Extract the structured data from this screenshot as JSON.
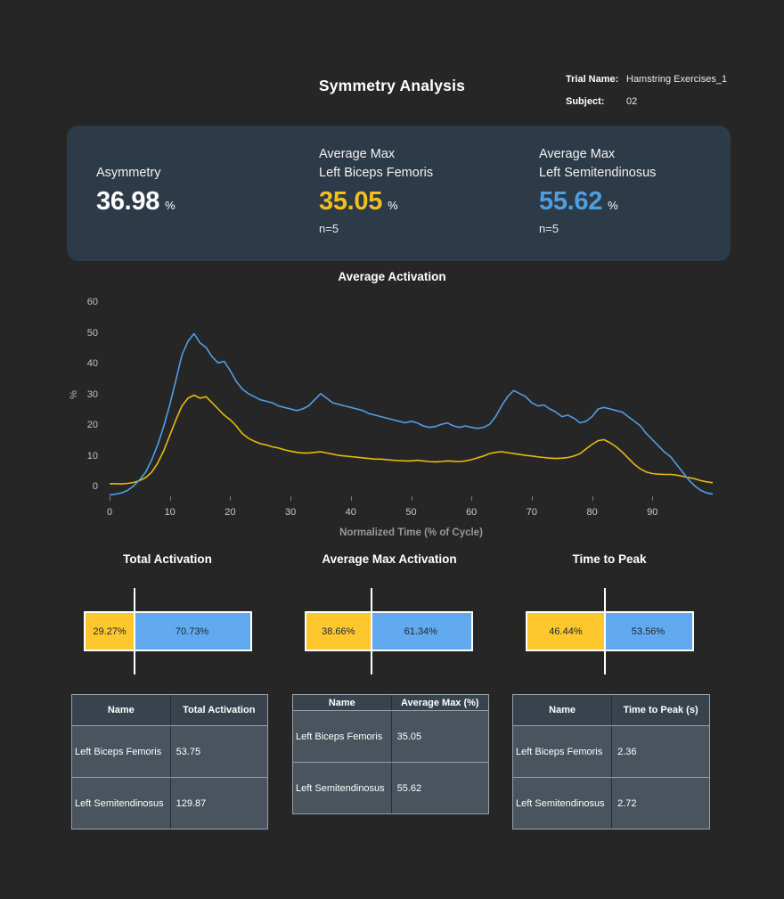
{
  "header": {
    "title": "Symmetry Analysis",
    "trial_name_label": "Trial Name:",
    "trial_name_value": "Hamstring Exercises_1",
    "subject_label": "Subject:",
    "subject_value": "02"
  },
  "summary_card": {
    "asymmetry": {
      "label": "Asymmetry",
      "value": "36.98",
      "unit": "%"
    },
    "biceps": {
      "label_line1": "Average Max",
      "label_line2": "Left Biceps Femoris",
      "value": "35.05",
      "unit": "%",
      "n": "n=5",
      "color": "#f2c01d"
    },
    "semitendinosus": {
      "label_line1": "Average Max",
      "label_line2": "Left Semitendinosus",
      "value": "55.62",
      "unit": "%",
      "n": "n=5",
      "color": "#4f9fe0"
    }
  },
  "colors": {
    "background": "#262626",
    "card": "#2d3a47",
    "line_yellow": "#e6bb0f",
    "line_blue": "#4f9ee6",
    "bar_yellow": "#ffc72e",
    "bar_blue": "#61aaef",
    "axis_text": "#c3c3c3"
  },
  "chart_data": [
    {
      "type": "line",
      "title": "Average Activation",
      "xlabel": "Normalized Time (% of Cycle)",
      "ylabel": "%",
      "xlim": [
        0,
        100
      ],
      "ylim": [
        0,
        60
      ],
      "x_ticks": [
        0,
        10,
        20,
        30,
        40,
        50,
        60,
        70,
        80,
        90
      ],
      "y_ticks": [
        0,
        10,
        20,
        30,
        40,
        50,
        60
      ],
      "grid": false,
      "legend": "none",
      "x": [
        0,
        1,
        2,
        3,
        4,
        5,
        6,
        7,
        8,
        9,
        10,
        11,
        12,
        13,
        14,
        15,
        16,
        17,
        18,
        19,
        20,
        21,
        22,
        23,
        24,
        25,
        26,
        27,
        28,
        29,
        30,
        31,
        32,
        33,
        34,
        35,
        36,
        37,
        38,
        39,
        40,
        41,
        42,
        43,
        44,
        45,
        46,
        47,
        48,
        49,
        50,
        51,
        52,
        53,
        54,
        55,
        56,
        57,
        58,
        59,
        60,
        61,
        62,
        63,
        64,
        65,
        66,
        67,
        68,
        69,
        70,
        71,
        72,
        73,
        74,
        75,
        76,
        77,
        78,
        79,
        80,
        81,
        82,
        83,
        84,
        85,
        86,
        87,
        88,
        89,
        90,
        91,
        92,
        93,
        94,
        95,
        96,
        97,
        98,
        99,
        100
      ],
      "series": [
        {
          "name": "Left Biceps Femoris",
          "color": "#e6bb0f",
          "values": [
            1.2,
            1.2,
            1.1,
            1.3,
            1.6,
            2.2,
            3.2,
            5,
            8,
            12,
            17,
            22,
            26.5,
            29,
            30,
            29,
            29.5,
            27.5,
            25.5,
            23.5,
            22,
            20,
            17.5,
            16,
            15,
            14.2,
            13.8,
            13.2,
            12.8,
            12.2,
            11.8,
            11.4,
            11.2,
            11.2,
            11.4,
            11.6,
            11.2,
            10.8,
            10.4,
            10.2,
            10,
            9.8,
            9.6,
            9.4,
            9.2,
            9.2,
            9,
            8.8,
            8.7,
            8.6,
            8.6,
            8.8,
            8.6,
            8.4,
            8.3,
            8.4,
            8.6,
            8.5,
            8.4,
            8.6,
            9,
            9.6,
            10.2,
            11,
            11.4,
            11.6,
            11.3,
            11,
            10.7,
            10.4,
            10.2,
            9.9,
            9.7,
            9.5,
            9.4,
            9.5,
            9.7,
            10.2,
            11,
            12.5,
            14,
            15.2,
            15.5,
            14.5,
            13.2,
            11.5,
            9.5,
            7.5,
            6,
            5,
            4.5,
            4.3,
            4.2,
            4.2,
            4,
            3.6,
            3.2,
            2.8,
            2.2,
            1.8,
            1.5
          ]
        },
        {
          "name": "Left Semitendinosus",
          "color": "#4f9ee6",
          "values": [
            -2.5,
            -2.2,
            -1.8,
            -1,
            0.5,
            2.5,
            5,
            9,
            14,
            20,
            27,
            35,
            43,
            47.5,
            50,
            47,
            45.5,
            42.5,
            40.5,
            41,
            38,
            34.5,
            32,
            30.5,
            29.5,
            28.5,
            28,
            27.5,
            26.5,
            26,
            25.5,
            25,
            25.5,
            26.5,
            28.5,
            30.5,
            29,
            27.5,
            27,
            26.5,
            26,
            25.5,
            25,
            24,
            23.5,
            23,
            22.5,
            22,
            21.5,
            21,
            21.5,
            21,
            20,
            19.5,
            19.8,
            20.5,
            21,
            20,
            19.5,
            20,
            19.5,
            19.2,
            19.5,
            20.5,
            23,
            26.5,
            29.5,
            31.5,
            30.5,
            29.5,
            27.5,
            26.5,
            26.8,
            25.5,
            24.5,
            23,
            23.5,
            22.5,
            21,
            21.5,
            23,
            25.5,
            26,
            25.5,
            25,
            24.5,
            23,
            21.5,
            20,
            17.5,
            15.5,
            13.5,
            11.5,
            10,
            7.5,
            5,
            2.5,
            0.5,
            -1,
            -1.8,
            -2.2
          ]
        }
      ]
    },
    {
      "type": "bar",
      "subtype": "symmetry-split",
      "title": "Total Activation",
      "series": [
        {
          "name": "Left Biceps Femoris",
          "value": 29.27
        },
        {
          "name": "Left Semitendinosus",
          "value": 70.73
        }
      ],
      "left_label": "29.27%",
      "right_label": "70.73%"
    },
    {
      "type": "bar",
      "subtype": "symmetry-split",
      "title": "Average Max Activation",
      "series": [
        {
          "name": "Left Biceps Femoris",
          "value": 38.66
        },
        {
          "name": "Left Semitendinosus",
          "value": 61.34
        }
      ],
      "left_label": "38.66%",
      "right_label": "61.34%"
    },
    {
      "type": "bar",
      "subtype": "symmetry-split",
      "title": "Time to Peak",
      "series": [
        {
          "name": "Left Biceps Femoris",
          "value": 46.44
        },
        {
          "name": "Left Semitendinosus",
          "value": 53.56
        }
      ],
      "left_label": "46.44%",
      "right_label": "53.56%"
    }
  ],
  "tables": [
    {
      "columns": [
        "Name",
        "Total Activation"
      ],
      "rows": [
        {
          "name": "Left Biceps Femoris",
          "value": "53.75"
        },
        {
          "name": "Left Semitendinosus",
          "value": "129.87"
        }
      ]
    },
    {
      "columns": [
        "Name",
        "Average Max (%)"
      ],
      "rows": [
        {
          "name": "Left Biceps Femoris",
          "value": "35.05"
        },
        {
          "name": "Left Semitendinosus",
          "value": "55.62"
        }
      ]
    },
    {
      "columns": [
        "Name",
        "Time to Peak (s)"
      ],
      "rows": [
        {
          "name": "Left Biceps Femoris",
          "value": "2.36"
        },
        {
          "name": "Left Semitendinosus",
          "value": "2.72"
        }
      ]
    }
  ]
}
